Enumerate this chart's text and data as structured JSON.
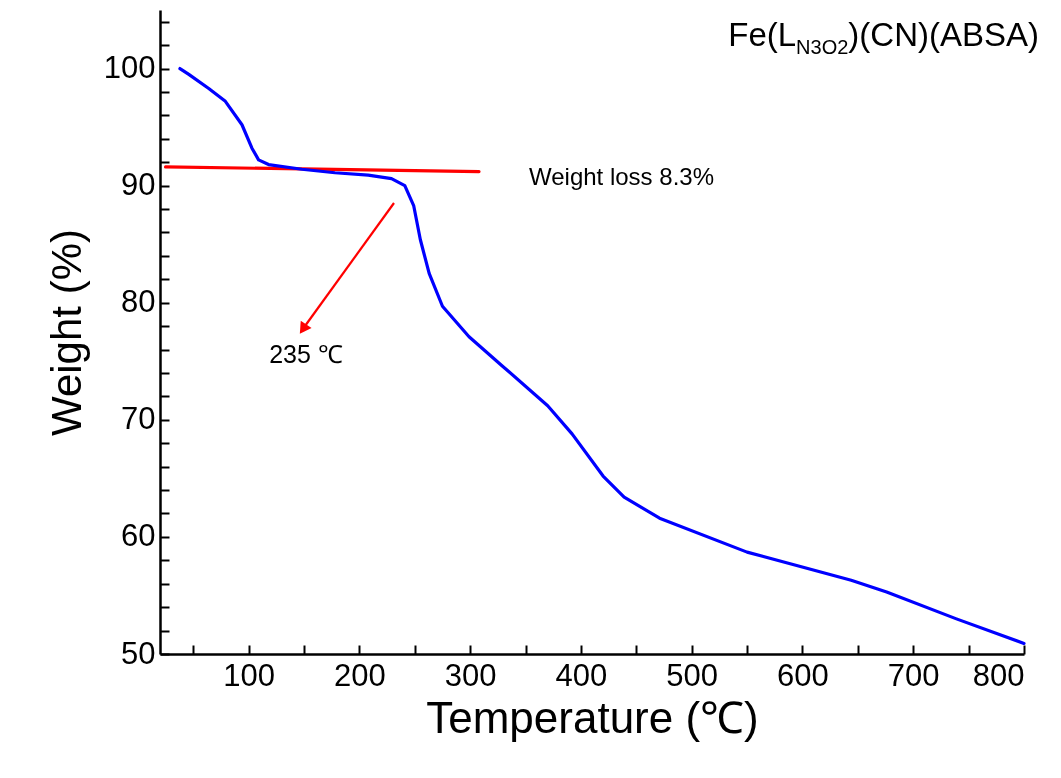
{
  "chart_data": {
    "type": "line",
    "title": "Fe(L$_{N3O2}$)(CN)(ABSA)",
    "xlabel": "Temperature (℃)",
    "ylabel": "Weight (%)",
    "xlim": [
      20,
      800
    ],
    "ylim": [
      50,
      105
    ],
    "xticks": [
      {
        "value": 50,
        "label": null
      },
      100,
      {
        "value": 150,
        "label": null
      },
      200,
      {
        "value": 250,
        "label": null
      },
      300,
      {
        "value": 350,
        "label": null
      },
      400,
      {
        "value": 450,
        "label": null
      },
      500,
      {
        "value": 550,
        "label": null
      },
      600,
      {
        "value": 650,
        "label": null
      },
      700,
      {
        "value": 750,
        "label": null
      },
      800
    ],
    "yticks": [
      50,
      {
        "value": 52,
        "label": null
      },
      {
        "value": 54,
        "label": null
      },
      {
        "value": 56,
        "label": null
      },
      {
        "value": 58,
        "label": null
      },
      60,
      {
        "value": 62,
        "label": null
      },
      {
        "value": 64,
        "label": null
      },
      {
        "value": 66,
        "label": null
      },
      {
        "value": 68,
        "label": null
      },
      70,
      {
        "value": 72,
        "label": null
      },
      {
        "value": 74,
        "label": null
      },
      {
        "value": 76,
        "label": null
      },
      {
        "value": 78,
        "label": null
      },
      80,
      {
        "value": 82,
        "label": null
      },
      {
        "value": 84,
        "label": null
      },
      {
        "value": 86,
        "label": null
      },
      {
        "value": 88,
        "label": null
      },
      90,
      {
        "value": 92,
        "label": null
      },
      {
        "value": 94,
        "label": null
      },
      {
        "value": 96,
        "label": null
      },
      {
        "value": 98,
        "label": null
      },
      100,
      {
        "value": 102,
        "label": null
      },
      {
        "value": 104,
        "label": null
      }
    ],
    "series": [
      {
        "color": "#0000ff",
        "x": [
          38,
          46,
          64,
          79,
          94,
          103,
          109,
          118,
          148,
          178,
          208,
          229,
          241,
          249,
          255,
          263,
          275,
          299,
          329,
          370,
          392,
          420,
          439,
          471,
          550,
          644,
          676,
          739,
          800
        ],
        "values": [
          100,
          99.5,
          98.3,
          97.2,
          95.2,
          93.2,
          92.2,
          91.8,
          91.4,
          91.1,
          90.9,
          90.6,
          90.0,
          88.3,
          85.4,
          82.5,
          79.7,
          77.1,
          74.6,
          71.2,
          68.8,
          65.2,
          63.4,
          61.6,
          58.7,
          56.3,
          55.3,
          53.0,
          50.9
        ]
      },
      {
        "type": "line",
        "color": "#ff0000",
        "x": [
          25,
          308
        ],
        "values": [
          91.6,
          91.2
        ]
      }
    ],
    "annotations": [
      "235 ℃",
      {
        "text": "Weight loss 8.3%",
        "x": 308,
        "y": 91.2
      }
    ]
  }
}
